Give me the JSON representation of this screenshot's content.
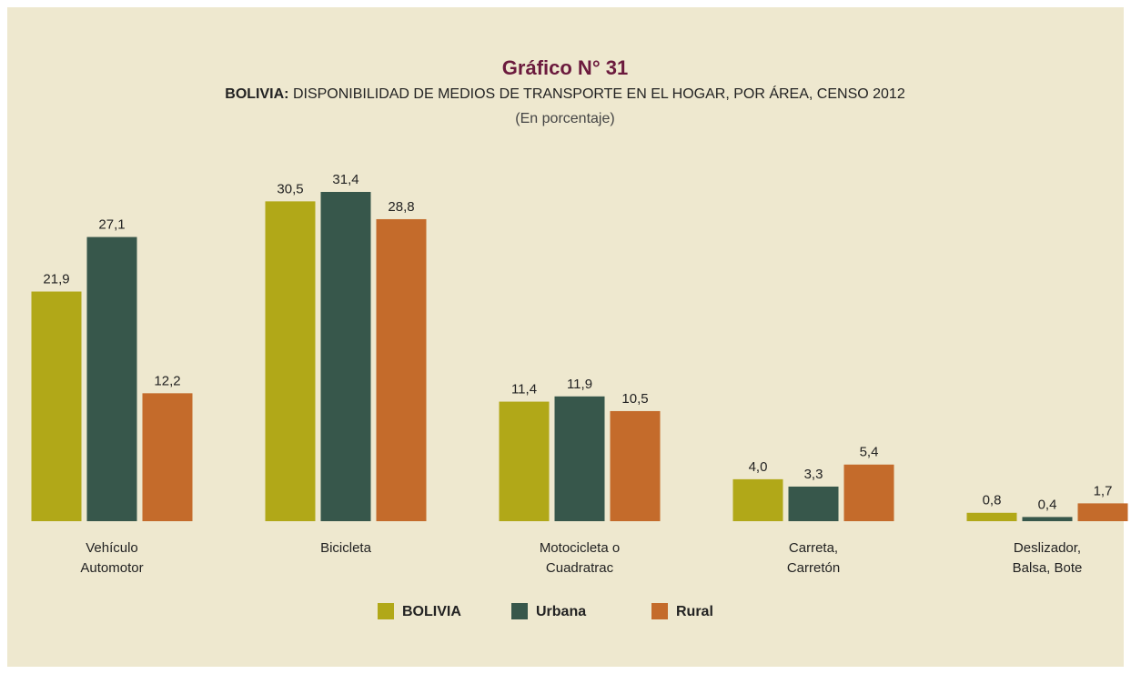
{
  "chart_data": {
    "type": "bar",
    "title": "Gráfico N° 31",
    "subtitle": [
      "BOLIVIA:",
      "DISPONIBILIDAD DE MEDIOS DE TRANSPORTE EN EL HOGAR, POR ÁREA, CENSO 2012"
    ],
    "units": "(En porcentaje)",
    "categories": [
      [
        "Vehículo",
        "Automotor"
      ],
      [
        "Bicicleta"
      ],
      [
        "Motocicleta o",
        "Cuadratrac"
      ],
      [
        "Carreta,",
        "Carretón"
      ],
      [
        "Deslizador,",
        "Balsa, Bote"
      ]
    ],
    "series": [
      {
        "name": "BOLIVIA",
        "color": "#b1a818",
        "values": [
          21.9,
          30.5,
          11.4,
          4.0,
          0.8
        ],
        "value_labels": [
          "21,9",
          "30,5",
          "11,4",
          "4,0",
          "0,8"
        ]
      },
      {
        "name": "Urbana",
        "color": "#37574b",
        "values": [
          27.1,
          31.4,
          11.9,
          3.3,
          0.4
        ],
        "value_labels": [
          "27,1",
          "31,4",
          "11,9",
          "3,3",
          "0,4"
        ]
      },
      {
        "name": "Rural",
        "color": "#c46b2b",
        "values": [
          12.2,
          28.8,
          10.5,
          5.4,
          1.7
        ],
        "value_labels": [
          "12,2",
          "28,8",
          "10,5",
          "5,4",
          "1,7"
        ]
      }
    ],
    "legend": "bottom"
  }
}
